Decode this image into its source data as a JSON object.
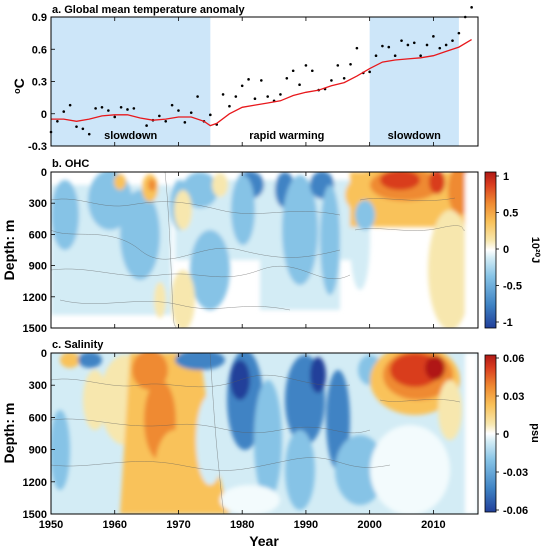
{
  "chart_data": [
    {
      "panel": "a",
      "type": "line",
      "title": "a. Global mean temperature anomaly",
      "ylabel_base": "o",
      "ylabel_unit": "C",
      "xlim": [
        1950,
        2017
      ],
      "ylim": [
        -0.3,
        0.9
      ],
      "yticks": [
        "-0.3",
        "0",
        "0.3",
        "0.6",
        "0.9"
      ],
      "ytick_values": [
        -0.3,
        0,
        0.3,
        0.6,
        0.9
      ],
      "shaded_periods": [
        {
          "from": 1950,
          "to": 1975,
          "label": "slowdown"
        },
        {
          "from": 2000,
          "to": 2014,
          "label": "slowdown"
        }
      ],
      "middle_annotation": {
        "label": "rapid warming",
        "x": 1987
      },
      "series": [
        {
          "kind": "scatter",
          "x": [
            1950,
            1951,
            1952,
            1953,
            1954,
            1955,
            1956,
            1957,
            1958,
            1959,
            1960,
            1961,
            1962,
            1963,
            1964,
            1965,
            1966,
            1967,
            1968,
            1969,
            1970,
            1971,
            1972,
            1973,
            1974,
            1975,
            1976,
            1977,
            1978,
            1979,
            1980,
            1981,
            1982,
            1983,
            1984,
            1985,
            1986,
            1987,
            1988,
            1989,
            1990,
            1991,
            1992,
            1993,
            1994,
            1995,
            1996,
            1997,
            1998,
            1999,
            2000,
            2001,
            2002,
            2003,
            2004,
            2005,
            2006,
            2007,
            2008,
            2009,
            2010,
            2011,
            2012,
            2013,
            2014,
            2015,
            2016
          ],
          "y": [
            -0.17,
            -0.07,
            0.02,
            0.08,
            -0.12,
            -0.14,
            -0.19,
            0.05,
            0.06,
            0.03,
            -0.03,
            0.06,
            0.04,
            0.05,
            -0.2,
            -0.11,
            -0.06,
            -0.02,
            -0.07,
            0.08,
            0.03,
            -0.08,
            0.01,
            0.16,
            -0.07,
            -0.01,
            -0.1,
            0.18,
            0.07,
            0.16,
            0.26,
            0.32,
            0.14,
            0.31,
            0.16,
            0.12,
            0.18,
            0.33,
            0.4,
            0.27,
            0.45,
            0.4,
            0.22,
            0.23,
            0.31,
            0.45,
            0.33,
            0.46,
            0.61,
            0.38,
            0.39,
            0.54,
            0.63,
            0.62,
            0.54,
            0.68,
            0.64,
            0.66,
            0.54,
            0.64,
            0.72,
            0.61,
            0.64,
            0.68,
            0.75,
            0.9,
            0.99
          ]
        },
        {
          "kind": "smooth",
          "color": "#e8181c",
          "x": [
            1950,
            1952,
            1954,
            1956,
            1958,
            1960,
            1962,
            1964,
            1966,
            1968,
            1970,
            1972,
            1974,
            1975,
            1976,
            1978,
            1980,
            1982,
            1984,
            1986,
            1988,
            1990,
            1992,
            1994,
            1996,
            1998,
            2000,
            2002,
            2004,
            2006,
            2008,
            2010,
            2012,
            2014,
            2016
          ],
          "y": [
            -0.05,
            -0.05,
            -0.07,
            -0.05,
            -0.02,
            -0.01,
            -0.01,
            -0.04,
            -0.06,
            -0.05,
            -0.03,
            -0.03,
            -0.07,
            -0.11,
            -0.09,
            0.0,
            0.06,
            0.08,
            0.1,
            0.12,
            0.17,
            0.2,
            0.22,
            0.26,
            0.29,
            0.35,
            0.42,
            0.48,
            0.5,
            0.51,
            0.52,
            0.54,
            0.58,
            0.62,
            0.69
          ]
        }
      ]
    },
    {
      "panel": "b",
      "type": "heatmap",
      "title": "b. OHC",
      "ylabel": "Depth: m",
      "yticks": [
        "0",
        "300",
        "600",
        "900",
        "1200",
        "1500"
      ],
      "ytick_values": [
        0,
        300,
        600,
        900,
        1200,
        1500
      ],
      "colorbar_ticks": [
        "1",
        "0.5",
        "0",
        "-0.5",
        "-1"
      ],
      "colorbar_values": [
        1,
        0.5,
        0,
        -0.5,
        -1
      ],
      "colorbar_label": "10²⁰J",
      "vmin": -1,
      "vmax": 1
    },
    {
      "panel": "c",
      "type": "heatmap",
      "title": "c. Salinity",
      "ylabel": "Depth: m",
      "yticks": [
        "0",
        "300",
        "600",
        "900",
        "1200",
        "1500"
      ],
      "ytick_values": [
        0,
        300,
        600,
        900,
        1200,
        1500
      ],
      "colorbar_ticks": [
        "0.06",
        "0.03",
        "0",
        "-0.03",
        "-0.06"
      ],
      "colorbar_values": [
        0.06,
        0.03,
        0,
        -0.03,
        -0.06
      ],
      "colorbar_label": "psu",
      "vmin": -0.06,
      "vmax": 0.06
    }
  ],
  "xaxis": {
    "label": "Year",
    "ticks": [
      "1950",
      "1960",
      "1970",
      "1980",
      "1990",
      "2000",
      "2010"
    ],
    "tick_values": [
      1950,
      1960,
      1970,
      1980,
      1990,
      2000,
      2010
    ],
    "xlim": [
      1950,
      2017
    ]
  },
  "colors": {
    "shade": "#cde6f9",
    "trend": "#e8181c",
    "scatter": "#000000",
    "colormap": [
      "#213f9a",
      "#3f83c4",
      "#86c3e6",
      "#d3ecf5",
      "#ffffff",
      "#f7e7ae",
      "#f9c25a",
      "#ef8a32",
      "#d93c1f",
      "#b01916"
    ]
  }
}
